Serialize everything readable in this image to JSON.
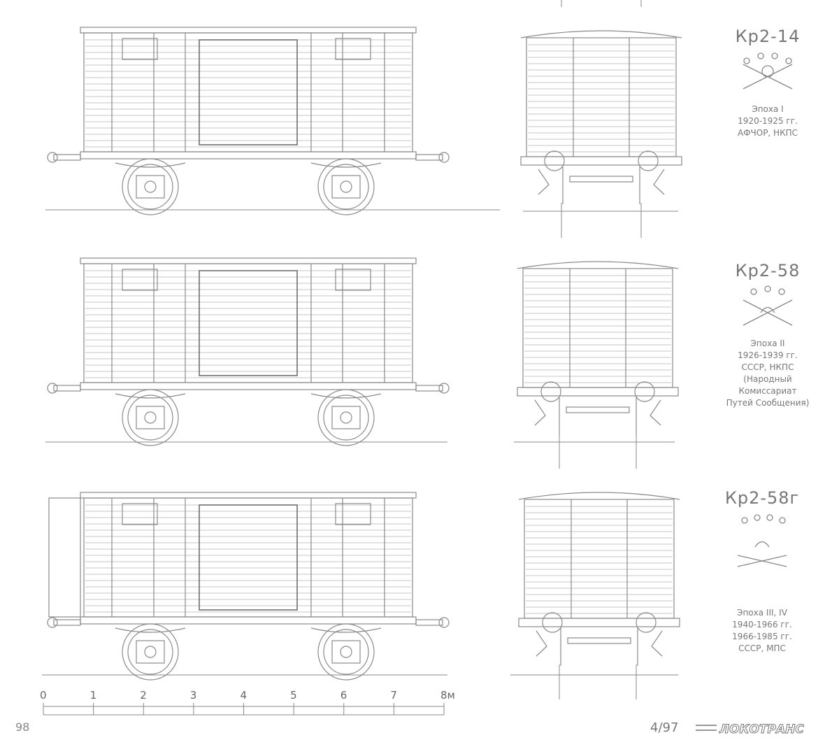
{
  "wagons": [
    {
      "code": "Кр2-14",
      "era_lines": [
        "Эпоха I",
        "1920-1925 гг.",
        "АФЧОР, НКПС"
      ]
    },
    {
      "code": "Кр2-58",
      "era_lines": [
        "Эпоха II",
        "1926-1939 гг.",
        "СССР, НКПС",
        "(Народный",
        "Комиссариат",
        "Путей Сообщения)"
      ]
    },
    {
      "code": "Кр2-58г",
      "era_lines": [
        "Эпоха III, IV",
        "1940-1966 гг.",
        "1966-1985 гг.",
        "СССР, МПС"
      ]
    }
  ],
  "scale": {
    "labels": [
      "0",
      "1",
      "2",
      "3",
      "4",
      "5",
      "6",
      "7",
      "8м"
    ]
  },
  "footer": {
    "page_number": "98",
    "issue": "4/97",
    "logo_text": "ЛОКОТРАНС"
  },
  "colors": {
    "line": "#8a8a8a",
    "line_dark": "#6e6e6e"
  }
}
